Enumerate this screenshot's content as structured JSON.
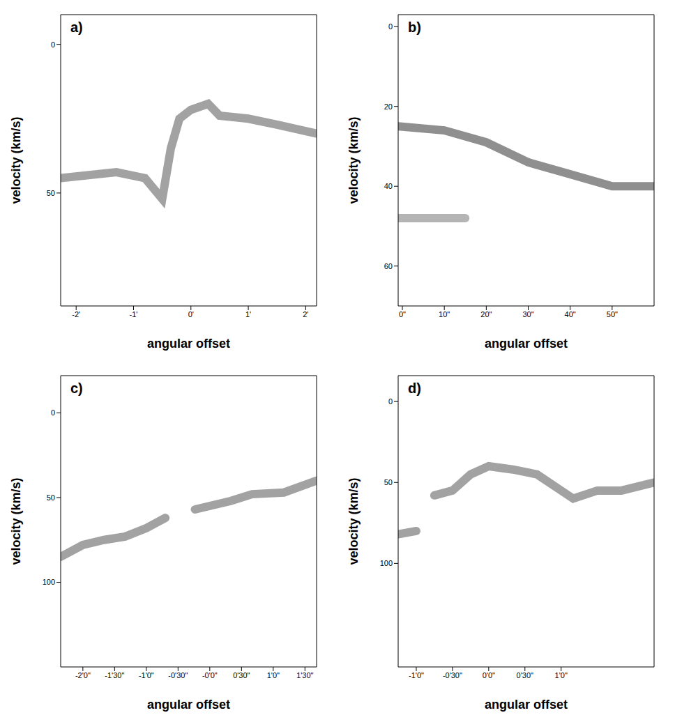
{
  "chart_data": [
    {
      "type": "line",
      "label": "a)",
      "xlabel": "angular offset",
      "ylabel": "velocity (km/s)",
      "xlim": [
        -2.27,
        2.19
      ],
      "xticks": [
        {
          "value": -2,
          "label": "-2'"
        },
        {
          "value": -1,
          "label": "-1'"
        },
        {
          "value": 0,
          "label": "0'"
        },
        {
          "value": 1,
          "label": "1'"
        },
        {
          "value": 2,
          "label": "2'"
        }
      ],
      "ylim": [
        -10,
        88
      ],
      "yticks": [
        0,
        50
      ],
      "series": [
        {
          "color": "#555555",
          "x": [
            -2.27,
            -1.3,
            -0.8,
            -0.5,
            -0.35,
            -0.2,
            0,
            0.3,
            0.5,
            1,
            1.5,
            2.19
          ],
          "values": [
            45,
            43,
            45,
            52,
            35,
            25,
            22,
            20,
            24,
            25,
            27,
            30
          ]
        }
      ]
    },
    {
      "type": "line",
      "label": "b)",
      "xlabel": "angular offset",
      "ylabel": "velocity (km/s)",
      "xlim": [
        -1,
        60
      ],
      "xticks": [
        {
          "value": 0,
          "label": "0\""
        },
        {
          "value": 10,
          "label": "10\""
        },
        {
          "value": 20,
          "label": "20\""
        },
        {
          "value": 30,
          "label": "30\""
        },
        {
          "value": 40,
          "label": "40\""
        },
        {
          "value": 50,
          "label": "50\""
        }
      ],
      "ylim": [
        -3,
        70
      ],
      "yticks": [
        0,
        20,
        40,
        60
      ],
      "series": [
        {
          "color": "#333333",
          "x": [
            -1,
            10,
            20,
            30,
            40,
            50,
            60
          ],
          "values": [
            25,
            26,
            29,
            34,
            37,
            40,
            40
          ]
        },
        {
          "color": "#777777",
          "x": [
            -1,
            8,
            15
          ],
          "values": [
            48,
            48,
            48
          ]
        }
      ]
    },
    {
      "type": "line",
      "label": "c)",
      "xlabel": "angular offset",
      "ylabel": "velocity (km/s)",
      "xlim": [
        -141,
        101
      ],
      "xticks": [
        {
          "value": -120,
          "label": "-2'0\""
        },
        {
          "value": -90,
          "label": "-1'30\""
        },
        {
          "value": -60,
          "label": "-1'0\""
        },
        {
          "value": -30,
          "label": "-0'30\""
        },
        {
          "value": 0,
          "label": "-0'0\""
        },
        {
          "value": 30,
          "label": "0'30\""
        },
        {
          "value": 60,
          "label": "1'0\""
        },
        {
          "value": 90,
          "label": "1'30\""
        }
      ],
      "ylim": [
        -22,
        150
      ],
      "yticks": [
        0,
        50,
        100
      ],
      "series": [
        {
          "color": "#555555",
          "x": [
            -141,
            -120,
            -100,
            -80,
            -60,
            -42,
            -28,
            -14,
            20,
            40,
            70,
            101
          ],
          "values": [
            85,
            78,
            75,
            73,
            68,
            62,
            null,
            57,
            52,
            48,
            47,
            40
          ]
        }
      ]
    },
    {
      "type": "line",
      "label": "d)",
      "xlabel": "angular offset",
      "ylabel": "velocity (km/s)",
      "xlim": [
        -75,
        137
      ],
      "xticks": [
        {
          "value": -60,
          "label": "-1'0\""
        },
        {
          "value": -30,
          "label": "-0'30\""
        },
        {
          "value": 0,
          "label": "0'0\""
        },
        {
          "value": 30,
          "label": "0'30\""
        },
        {
          "value": 60,
          "label": "1'0\""
        }
      ],
      "ylim": [
        -16,
        164
      ],
      "yticks": [
        0,
        50,
        100
      ],
      "series": [
        {
          "color": "#555555",
          "x": [
            -75,
            -60,
            -50,
            -45,
            -30,
            -15,
            0,
            20,
            40,
            60,
            70,
            90,
            110,
            137
          ],
          "values": [
            82,
            80,
            null,
            58,
            55,
            45,
            40,
            42,
            45,
            55,
            60,
            55,
            55,
            50
          ]
        }
      ]
    }
  ]
}
